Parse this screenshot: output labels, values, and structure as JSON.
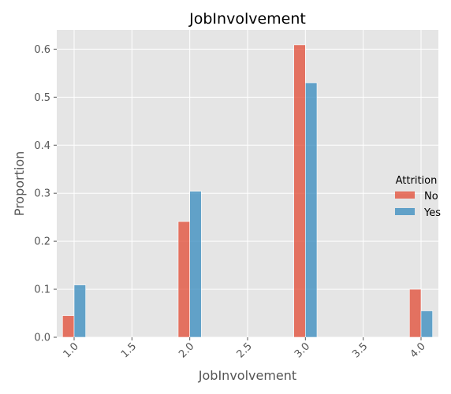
{
  "chart_data": {
    "type": "bar",
    "title": "JobInvolvement",
    "xlabel": "JobInvolvement",
    "ylabel": "Proportion",
    "xlim": [
      0.85,
      4.15
    ],
    "ylim": [
      0,
      0.64
    ],
    "xticks": [
      "1.0",
      "1.5",
      "2.0",
      "2.5",
      "3.0",
      "3.5",
      "4.0"
    ],
    "xtick_values": [
      1.0,
      1.5,
      2.0,
      2.5,
      3.0,
      3.5,
      4.0
    ],
    "yticks": [
      "0.0",
      "0.1",
      "0.2",
      "0.3",
      "0.4",
      "0.5",
      "0.6"
    ],
    "ytick_values": [
      0.0,
      0.1,
      0.2,
      0.3,
      0.4,
      0.5,
      0.6
    ],
    "categories": [
      1,
      2,
      3,
      4
    ],
    "grid": true,
    "legend": {
      "title": "Attrition",
      "placement": "right"
    },
    "series": [
      {
        "name": "No",
        "color": "#E24A33",
        "values": [
          0.045,
          0.241,
          0.609,
          0.1
        ]
      },
      {
        "name": "Yes",
        "color": "#348ABD",
        "values": [
          0.109,
          0.304,
          0.53,
          0.055
        ]
      }
    ]
  }
}
